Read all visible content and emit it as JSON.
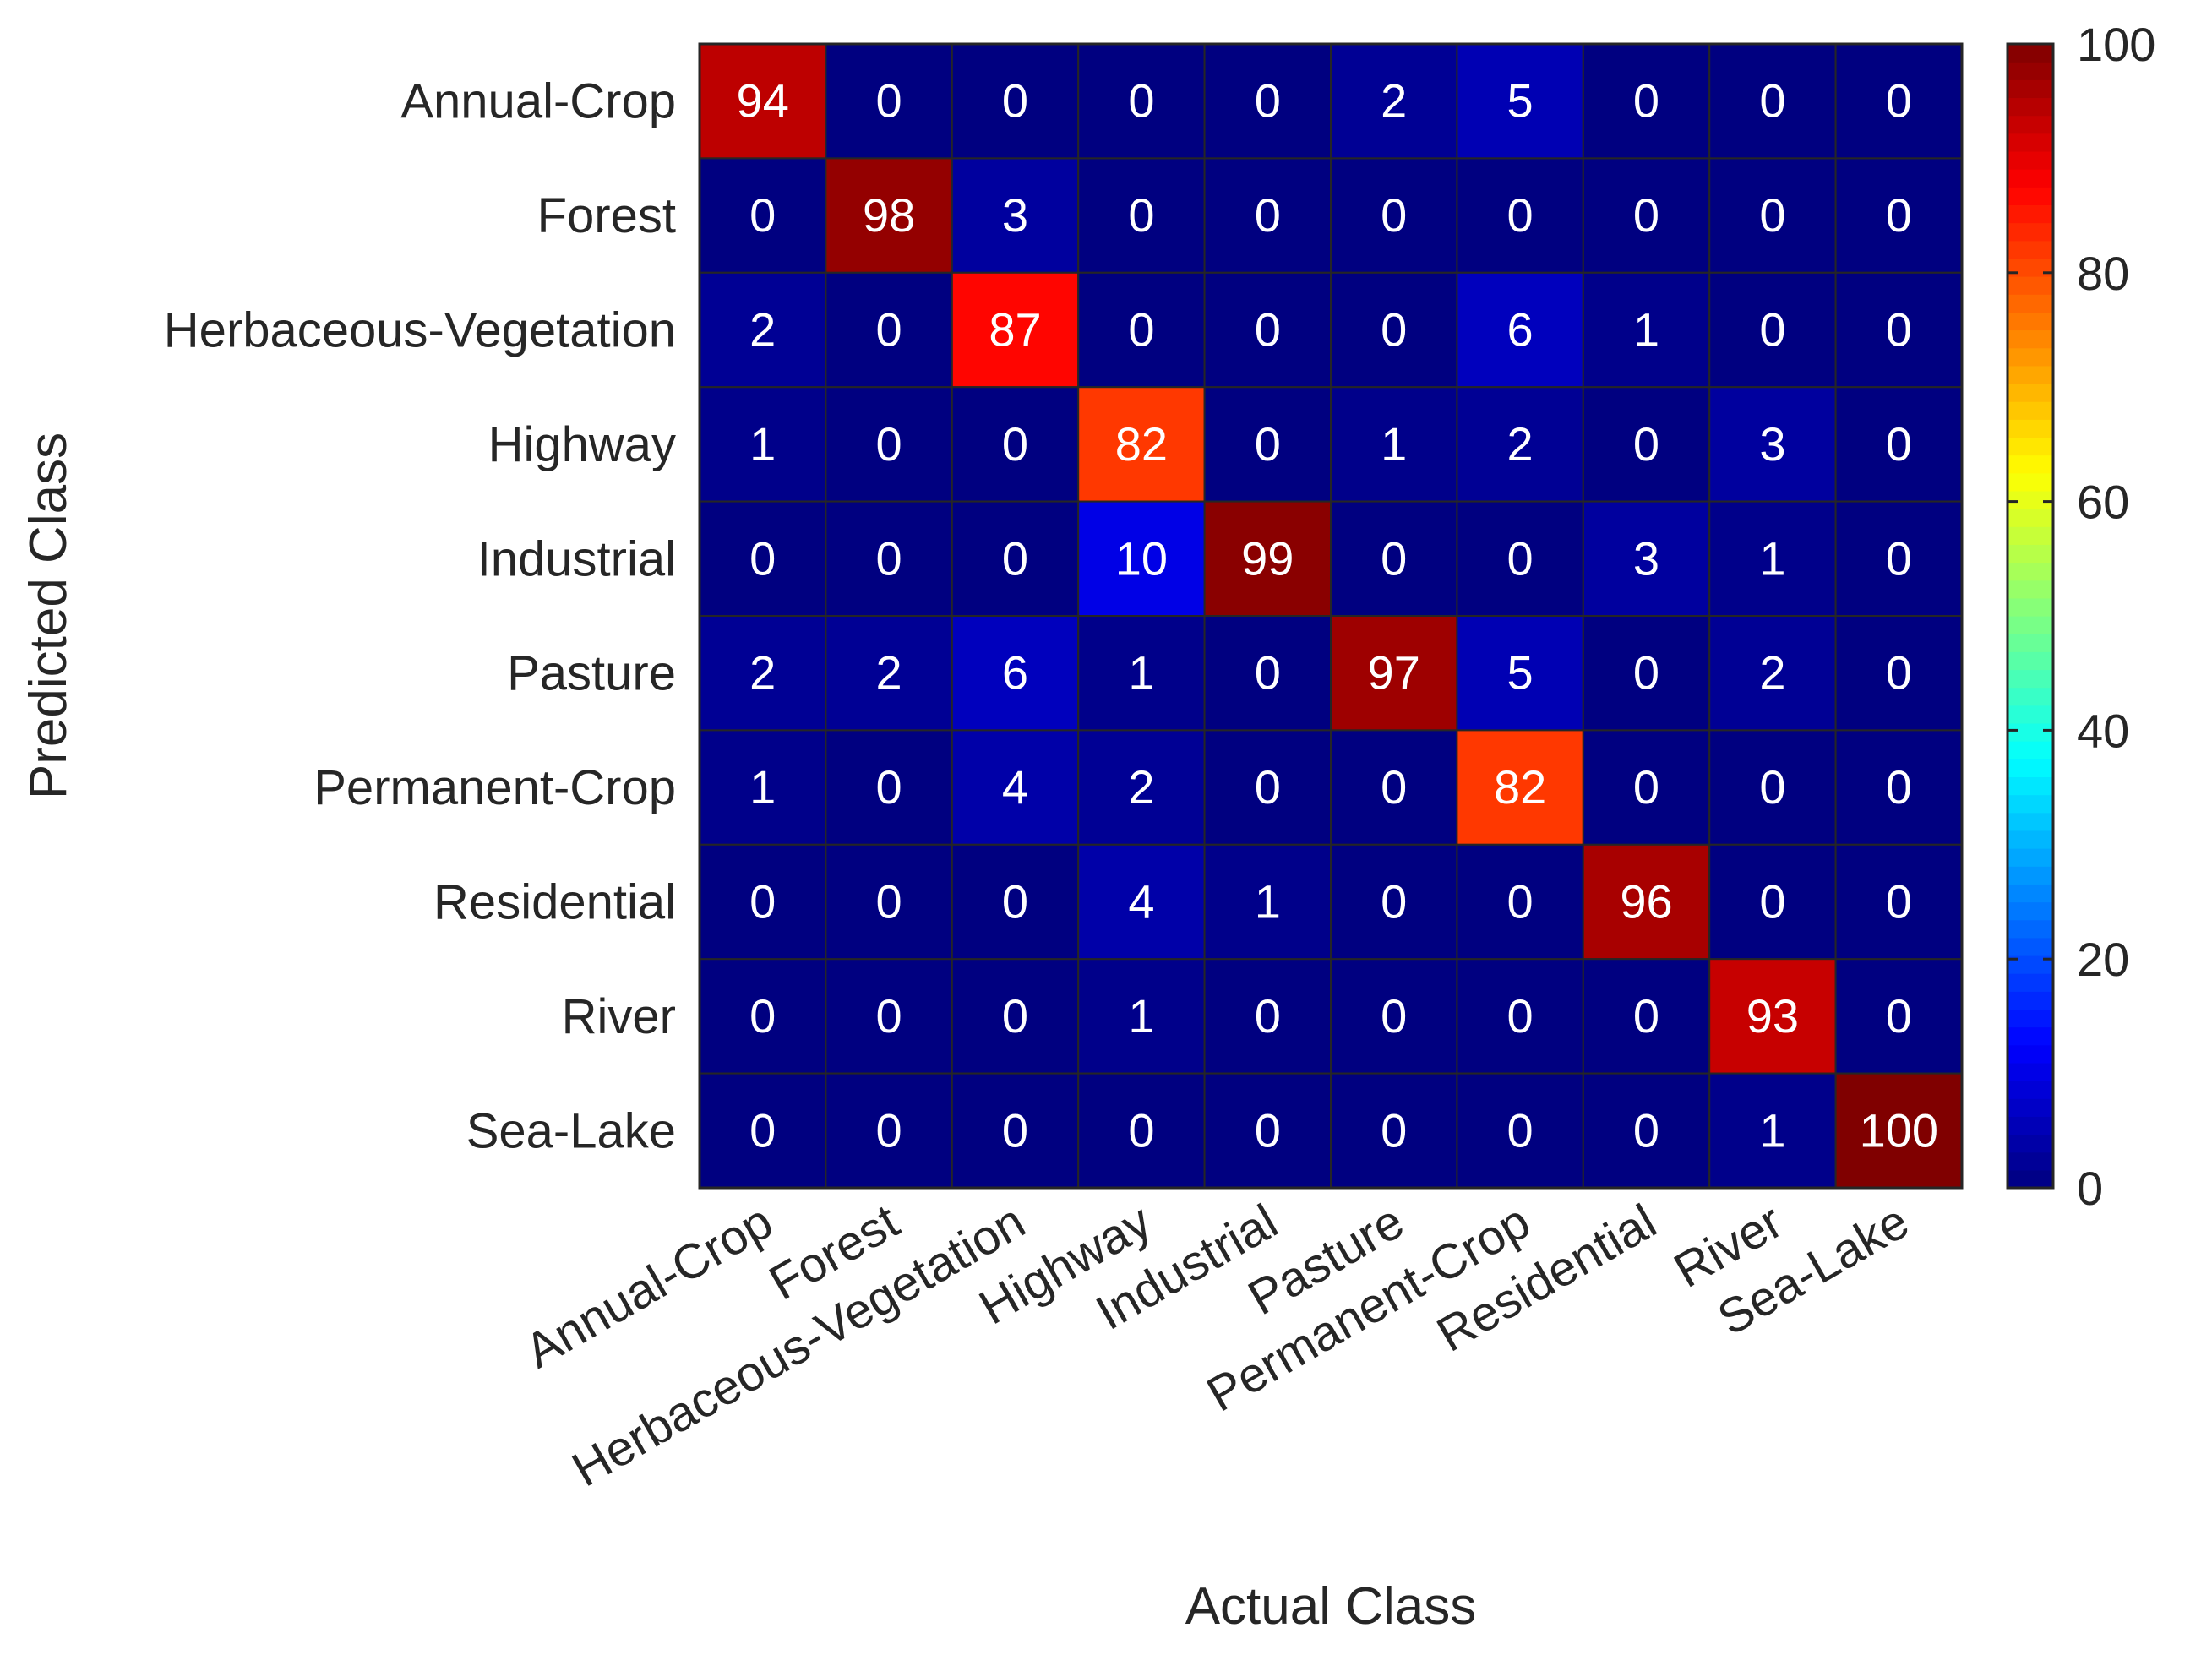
{
  "chart_data": {
    "type": "heatmap",
    "title": "",
    "xlabel": "Actual Class",
    "ylabel": "Predicted Class",
    "x_categories": [
      "Annual-Crop",
      "Forest",
      "Herbaceous-Vegetation",
      "Highway",
      "Industrial",
      "Pasture",
      "Permanent-Crop",
      "Residential",
      "River",
      "Sea-Lake"
    ],
    "y_categories": [
      "Annual-Crop",
      "Forest",
      "Herbaceous-Vegetation",
      "Highway",
      "Industrial",
      "Pasture",
      "Permanent-Crop",
      "Residential",
      "River",
      "Sea-Lake"
    ],
    "values": [
      [
        94,
        0,
        0,
        0,
        0,
        2,
        5,
        0,
        0,
        0
      ],
      [
        0,
        98,
        3,
        0,
        0,
        0,
        0,
        0,
        0,
        0
      ],
      [
        2,
        0,
        87,
        0,
        0,
        0,
        6,
        1,
        0,
        0
      ],
      [
        1,
        0,
        0,
        82,
        0,
        1,
        2,
        0,
        3,
        0
      ],
      [
        0,
        0,
        0,
        10,
        99,
        0,
        0,
        3,
        1,
        0
      ],
      [
        2,
        2,
        6,
        1,
        0,
        97,
        5,
        0,
        2,
        0
      ],
      [
        1,
        0,
        4,
        2,
        0,
        0,
        82,
        0,
        0,
        0
      ],
      [
        0,
        0,
        0,
        4,
        1,
        0,
        0,
        96,
        0,
        0
      ],
      [
        0,
        0,
        0,
        1,
        0,
        0,
        0,
        0,
        93,
        0
      ],
      [
        0,
        0,
        0,
        0,
        0,
        0,
        0,
        0,
        1,
        100
      ]
    ],
    "colorscale": "jet",
    "color_range": [
      0,
      100
    ],
    "colorbar_ticks": [
      0,
      20,
      40,
      60,
      80,
      100
    ],
    "grid": true,
    "colorbar_position": "right"
  }
}
